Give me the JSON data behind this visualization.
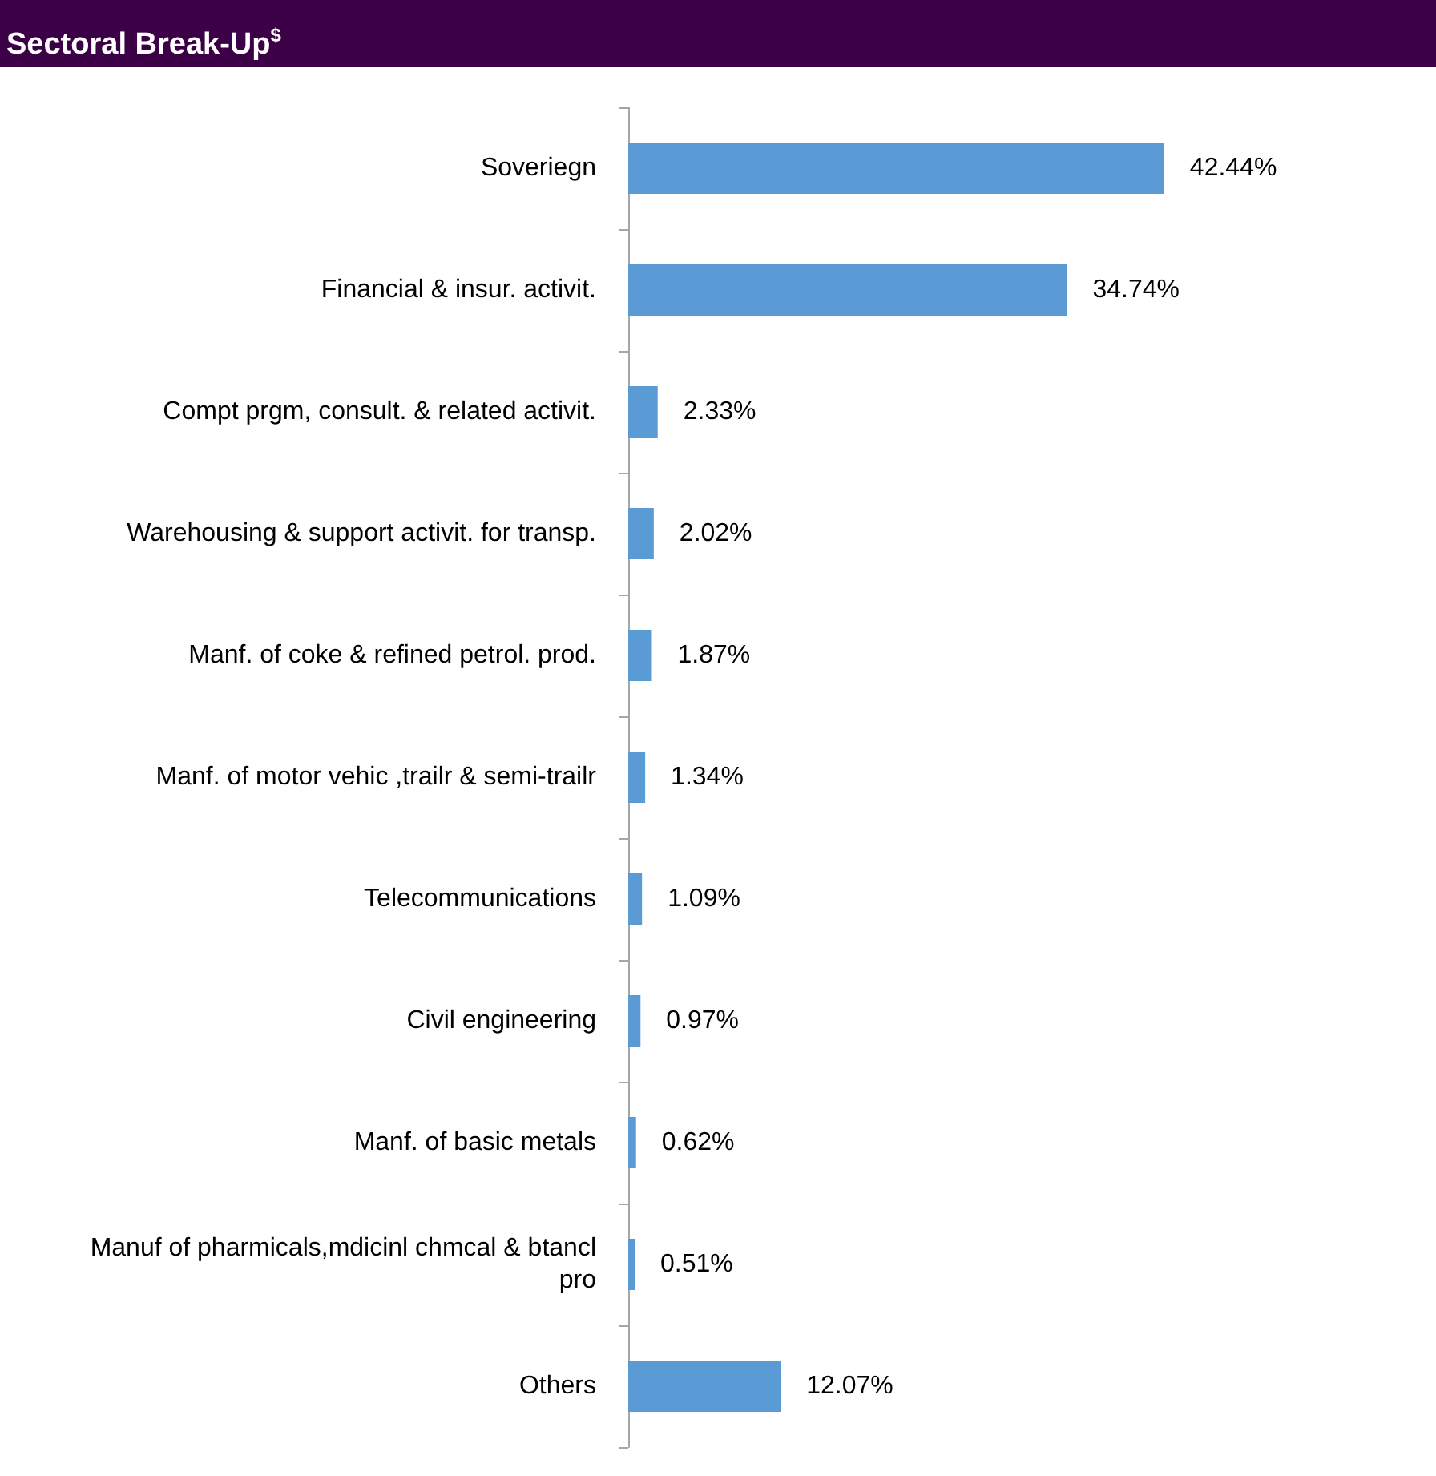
{
  "chart_data": {
    "type": "bar",
    "orientation": "horizontal",
    "title": "Sectoral Break-Up$^{$}$",
    "categories": [
      "Soveriegn",
      "Financial & insur. activit.",
      "Compt prgm, consult. & related activit.",
      "Warehousing & support activit. for transp.",
      "Manf. of coke & refined petrol. prod.",
      "Manf. of motor vehic ,trailr & semi-trailr",
      "Telecommunications",
      "Civil engineering",
      "Manf. of basic metals",
      "Manuf of pharmicals,mdicinl chmcal & btancl pro",
      "Others"
    ],
    "values": [
      42.44,
      34.74,
      2.33,
      2.02,
      1.87,
      1.34,
      1.09,
      0.97,
      0.62,
      0.51,
      12.07
    ],
    "value_labels": [
      "42.44%",
      "34.74%",
      "2.33%",
      "2.02%",
      "1.87%",
      "1.34%",
      "1.09%",
      "0.97%",
      "0.62%",
      "0.51%",
      "12.07%"
    ],
    "color": "#5b9bd5"
  }
}
